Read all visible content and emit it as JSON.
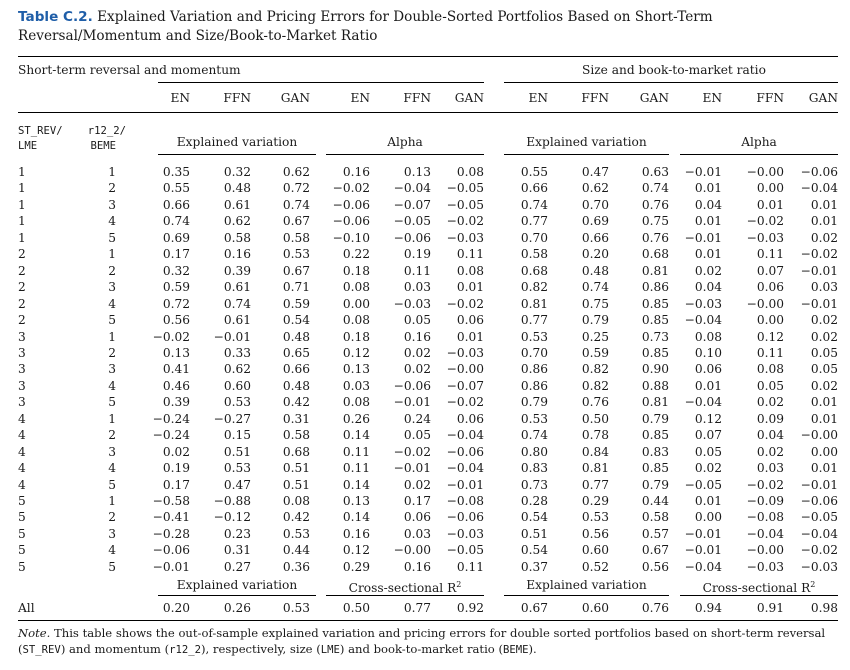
{
  "caption": {
    "label": "Table C.2.",
    "text": " Explained Variation and Pricing Errors for Double-Sorted Portfolios Based on Short-Term Reversal/Momentum and Size/Book-to-Market Ratio"
  },
  "groups": [
    "Short-term reversal and momentum",
    "Size and book-to-market ratio"
  ],
  "model_headers": [
    "EN",
    "FFN",
    "GAN",
    "EN",
    "FFN",
    "GAN",
    "EN",
    "FFN",
    "GAN",
    "EN",
    "FFN",
    "GAN"
  ],
  "sort_headers": {
    "c1_top": "ST_REV/",
    "c1_bot": "LME",
    "c2_top": "r12_2/",
    "c2_bot": "BEME"
  },
  "block_headers": [
    "Explained variation",
    "Alpha",
    "Explained variation",
    "Alpha"
  ],
  "rows": [
    [
      "1",
      "1",
      "0.35",
      "0.32",
      "0.62",
      "0.16",
      "0.13",
      "0.08",
      "0.55",
      "0.47",
      "0.63",
      "−0.01",
      "−0.00",
      "−0.06"
    ],
    [
      "1",
      "2",
      "0.55",
      "0.48",
      "0.72",
      "−0.02",
      "−0.04",
      "−0.05",
      "0.66",
      "0.62",
      "0.74",
      "0.01",
      "0.00",
      "−0.04"
    ],
    [
      "1",
      "3",
      "0.66",
      "0.61",
      "0.74",
      "−0.06",
      "−0.07",
      "−0.05",
      "0.74",
      "0.70",
      "0.76",
      "0.04",
      "0.01",
      "0.01"
    ],
    [
      "1",
      "4",
      "0.74",
      "0.62",
      "0.67",
      "−0.06",
      "−0.05",
      "−0.02",
      "0.77",
      "0.69",
      "0.75",
      "0.01",
      "−0.02",
      "0.01"
    ],
    [
      "1",
      "5",
      "0.69",
      "0.58",
      "0.58",
      "−0.10",
      "−0.06",
      "−0.03",
      "0.70",
      "0.66",
      "0.76",
      "−0.01",
      "−0.03",
      "0.02"
    ],
    [
      "2",
      "1",
      "0.17",
      "0.16",
      "0.53",
      "0.22",
      "0.19",
      "0.11",
      "0.58",
      "0.20",
      "0.68",
      "0.01",
      "0.11",
      "−0.02"
    ],
    [
      "2",
      "2",
      "0.32",
      "0.39",
      "0.67",
      "0.18",
      "0.11",
      "0.08",
      "0.68",
      "0.48",
      "0.81",
      "0.02",
      "0.07",
      "−0.01"
    ],
    [
      "2",
      "3",
      "0.59",
      "0.61",
      "0.71",
      "0.08",
      "0.03",
      "0.01",
      "0.82",
      "0.74",
      "0.86",
      "0.04",
      "0.06",
      "0.03"
    ],
    [
      "2",
      "4",
      "0.72",
      "0.74",
      "0.59",
      "0.00",
      "−0.03",
      "−0.02",
      "0.81",
      "0.75",
      "0.85",
      "−0.03",
      "−0.00",
      "−0.01"
    ],
    [
      "2",
      "5",
      "0.56",
      "0.61",
      "0.54",
      "0.08",
      "0.05",
      "0.06",
      "0.77",
      "0.79",
      "0.85",
      "−0.04",
      "0.00",
      "0.02"
    ],
    [
      "3",
      "1",
      "−0.02",
      "−0.01",
      "0.48",
      "0.18",
      "0.16",
      "0.01",
      "0.53",
      "0.25",
      "0.73",
      "0.08",
      "0.12",
      "0.02"
    ],
    [
      "3",
      "2",
      "0.13",
      "0.33",
      "0.65",
      "0.12",
      "0.02",
      "−0.03",
      "0.70",
      "0.59",
      "0.85",
      "0.10",
      "0.11",
      "0.05"
    ],
    [
      "3",
      "3",
      "0.41",
      "0.62",
      "0.66",
      "0.13",
      "0.02",
      "−0.00",
      "0.86",
      "0.82",
      "0.90",
      "0.06",
      "0.08",
      "0.05"
    ],
    [
      "3",
      "4",
      "0.46",
      "0.60",
      "0.48",
      "0.03",
      "−0.06",
      "−0.07",
      "0.86",
      "0.82",
      "0.88",
      "0.01",
      "0.05",
      "0.02"
    ],
    [
      "3",
      "5",
      "0.39",
      "0.53",
      "0.42",
      "0.08",
      "−0.01",
      "−0.02",
      "0.79",
      "0.76",
      "0.81",
      "−0.04",
      "0.02",
      "0.01"
    ],
    [
      "4",
      "1",
      "−0.24",
      "−0.27",
      "0.31",
      "0.26",
      "0.24",
      "0.06",
      "0.53",
      "0.50",
      "0.79",
      "0.12",
      "0.09",
      "0.01"
    ],
    [
      "4",
      "2",
      "−0.24",
      "0.15",
      "0.58",
      "0.14",
      "0.05",
      "−0.04",
      "0.74",
      "0.78",
      "0.85",
      "0.07",
      "0.04",
      "−0.00"
    ],
    [
      "4",
      "3",
      "0.02",
      "0.51",
      "0.68",
      "0.11",
      "−0.02",
      "−0.06",
      "0.80",
      "0.84",
      "0.83",
      "0.05",
      "0.02",
      "0.00"
    ],
    [
      "4",
      "4",
      "0.19",
      "0.53",
      "0.51",
      "0.11",
      "−0.01",
      "−0.04",
      "0.83",
      "0.81",
      "0.85",
      "0.02",
      "0.03",
      "0.01"
    ],
    [
      "4",
      "5",
      "0.17",
      "0.47",
      "0.51",
      "0.14",
      "0.02",
      "−0.01",
      "0.73",
      "0.77",
      "0.79",
      "−0.05",
      "−0.02",
      "−0.01"
    ],
    [
      "5",
      "1",
      "−0.58",
      "−0.88",
      "0.08",
      "0.13",
      "0.17",
      "−0.08",
      "0.28",
      "0.29",
      "0.44",
      "0.01",
      "−0.09",
      "−0.06"
    ],
    [
      "5",
      "2",
      "−0.41",
      "−0.12",
      "0.42",
      "0.14",
      "0.06",
      "−0.06",
      "0.54",
      "0.53",
      "0.58",
      "0.00",
      "−0.08",
      "−0.05"
    ],
    [
      "5",
      "3",
      "−0.28",
      "0.23",
      "0.53",
      "0.16",
      "0.03",
      "−0.03",
      "0.51",
      "0.56",
      "0.57",
      "−0.01",
      "−0.04",
      "−0.04"
    ],
    [
      "5",
      "4",
      "−0.06",
      "0.31",
      "0.44",
      "0.12",
      "−0.00",
      "−0.05",
      "0.54",
      "0.60",
      "0.67",
      "−0.01",
      "−0.00",
      "−0.02"
    ],
    [
      "5",
      "5",
      "−0.01",
      "0.27",
      "0.36",
      "0.29",
      "0.16",
      "0.11",
      "0.37",
      "0.52",
      "0.56",
      "−0.04",
      "−0.03",
      "−0.03"
    ]
  ],
  "summary_headers": [
    "Explained variation",
    "Cross-sectional R",
    "Explained variation",
    "Cross-sectional R"
  ],
  "summary_sup": "2",
  "all_row": {
    "label": "All",
    "values": [
      "0.20",
      "0.26",
      "0.53",
      "0.50",
      "0.77",
      "0.92",
      "0.67",
      "0.60",
      "0.76",
      "0.94",
      "0.91",
      "0.98"
    ]
  },
  "note": {
    "lead": "Note.",
    "p1": " This table shows the out-of-sample explained variation and pricing errors for double sorted portfolios based on short-term reversal (",
    "m1": "ST_REV",
    "p2": ") and momentum (",
    "m2": "r12_2",
    "p3": "), respectively, size (",
    "m3": "LME",
    "p4": ") and book-to-market ratio (",
    "m4": "BEME",
    "p5": ")."
  }
}
